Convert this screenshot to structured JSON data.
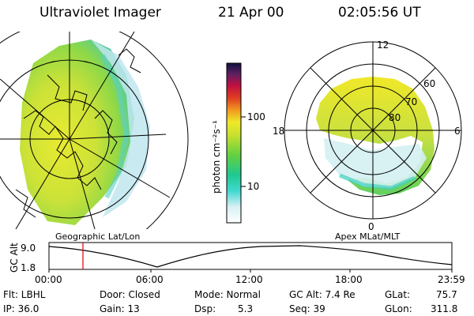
{
  "header": {
    "title": "Ultraviolet Imager",
    "date": "21 Apr 00",
    "time": "02:05:56 UT"
  },
  "colorbar": {
    "unit_label": "photon cm⁻²s⁻¹",
    "ticks": [
      "100",
      "10"
    ]
  },
  "apex_plot": {
    "mlt_labels": {
      "top": "12",
      "left": "18",
      "right": "6",
      "bottom": "0"
    },
    "lat_labels": [
      "60",
      "70",
      "80"
    ]
  },
  "panel_labels": {
    "left": "Geographic Lat/Lon",
    "right": "Apex MLat/MLT"
  },
  "altitude_plot": {
    "axis_label": "GC Alt",
    "y_ticks": [
      "9.0",
      "1.8"
    ],
    "x_ticks": [
      "00:00",
      "06:00",
      "12:00",
      "18:00",
      "23:59"
    ],
    "marker_color": "#dd0000"
  },
  "info": {
    "flt": "Flt: LBHL",
    "door": "Door: Closed",
    "mode": "Mode: Normal",
    "gcalt": "GC Alt: 7.4 Re",
    "glat_label": "GLat:",
    "glat_value": "75.7",
    "ip": "IP: 36.0",
    "gain": "Gain: 13",
    "dsp_label": "Dsp:",
    "dsp_value": "5.3",
    "seq": "Seq: 39",
    "glon_label": "GLon:",
    "glon_value": "311.8"
  }
}
